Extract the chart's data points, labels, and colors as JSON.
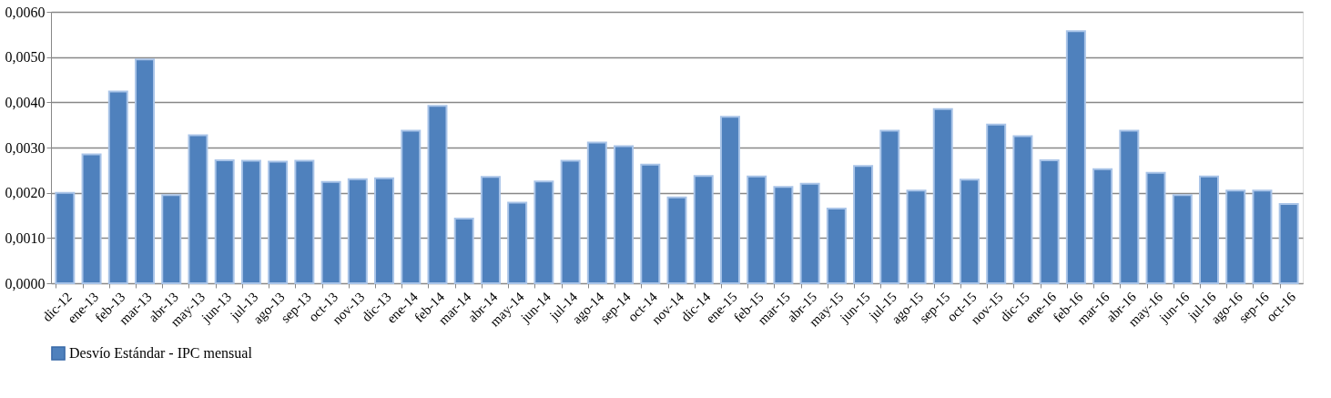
{
  "chart_data": {
    "type": "bar",
    "categories": [
      "dic-12",
      "ene-13",
      "feb-13",
      "mar-13",
      "abr-13",
      "may-13",
      "jun-13",
      "jul-13",
      "ago-13",
      "sep-13",
      "oct-13",
      "nov-13",
      "dic-13",
      "ene-14",
      "feb-14",
      "mar-14",
      "abr-14",
      "may-14",
      "jun-14",
      "jul-14",
      "ago-14",
      "sep-14",
      "oct-14",
      "nov-14",
      "dic-14",
      "ene-15",
      "feb-15",
      "mar-15",
      "abr-15",
      "may-15",
      "jun-15",
      "jul-15",
      "ago-15",
      "sep-15",
      "oct-15",
      "nov-15",
      "dic-15",
      "ene-16",
      "feb-16",
      "mar-16",
      "abr-16",
      "may-16",
      "jun-16",
      "jul-16",
      "ago-16",
      "sep-16",
      "oct-16"
    ],
    "series": [
      {
        "name": "Desvío Estándar - IPC mensual",
        "color": "#4f81bd",
        "values": [
          0.002,
          0.00285,
          0.00424,
          0.00495,
          0.00195,
          0.00327,
          0.00272,
          0.00271,
          0.00269,
          0.00271,
          0.00224,
          0.0023,
          0.00232,
          0.00337,
          0.00392,
          0.00143,
          0.00235,
          0.00178,
          0.00225,
          0.00271,
          0.00311,
          0.00303,
          0.00262,
          0.0019,
          0.00237,
          0.00368,
          0.00236,
          0.00213,
          0.0022,
          0.00165,
          0.00259,
          0.00337,
          0.00205,
          0.00385,
          0.00229,
          0.00351,
          0.00325,
          0.00272,
          0.00557,
          0.00252,
          0.00337,
          0.00244,
          0.00195,
          0.00236,
          0.00205,
          0.00205,
          0.00175
        ]
      }
    ],
    "ylim": [
      0,
      0.006
    ],
    "yticks": [
      {
        "value": 0,
        "label": "0,0000"
      },
      {
        "value": 0.001,
        "label": "0,0010"
      },
      {
        "value": 0.002,
        "label": "0,0020"
      },
      {
        "value": 0.003,
        "label": "0,0030"
      },
      {
        "value": 0.004,
        "label": "0,0040"
      },
      {
        "value": 0.005,
        "label": "0,0050"
      },
      {
        "value": 0.006,
        "label": "0,0060"
      }
    ],
    "grid": "y",
    "legend": "bottom"
  }
}
